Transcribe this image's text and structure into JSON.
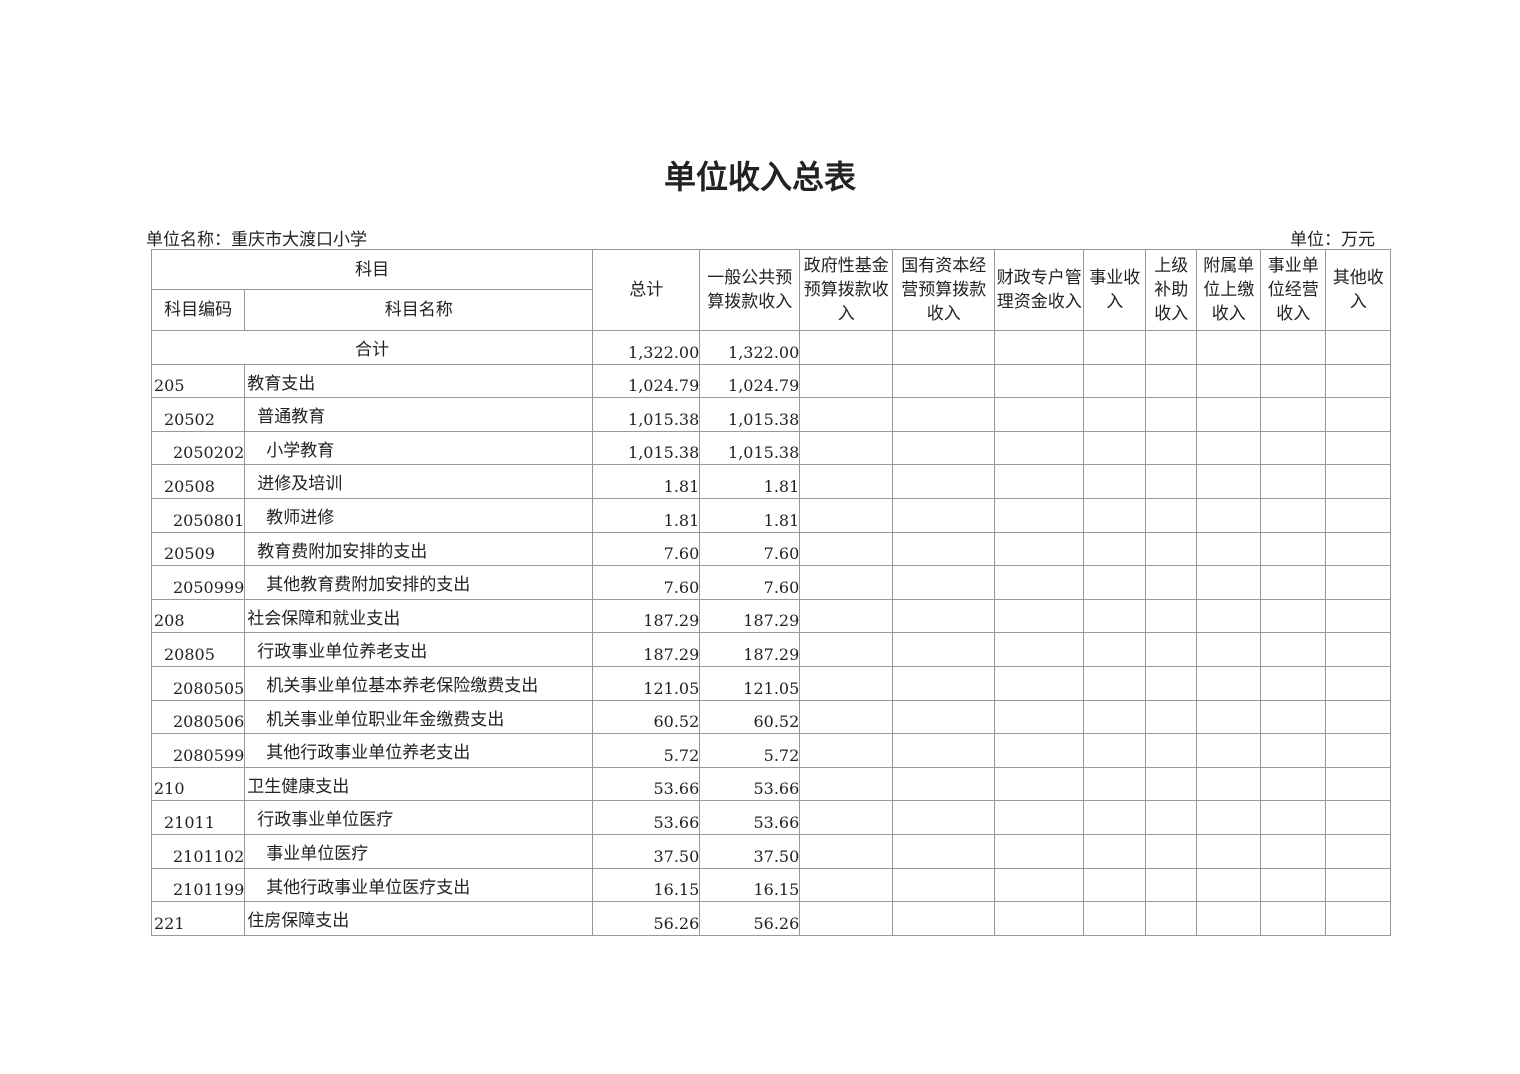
{
  "title": "单位收入总表",
  "unit_name": "单位名称：重庆市大渡口小学",
  "unit": "单位：万元",
  "headers": {
    "subject": "科目",
    "code": "科目编码",
    "name": "科目名称",
    "total": "总计",
    "cols": [
      "一般公共预算拨款收入",
      "政府性基金预算拨款收入",
      "国有资本经营预算拨款收入",
      "财政专户管理资金收入",
      "事业收入",
      "上级补助收入",
      "附属单位上缴收入",
      "事业单位经营收入",
      "其他收入"
    ]
  },
  "total_row": {
    "label": "合计",
    "total": "1,322.00",
    "general": "1,322.00"
  },
  "rows": [
    {
      "code": "205",
      "name": "教育支出",
      "level": 1,
      "total": "1,024.79",
      "general": "1,024.79"
    },
    {
      "code": "20502",
      "name": "普通教育",
      "level": 2,
      "total": "1,015.38",
      "general": "1,015.38"
    },
    {
      "code": "2050202",
      "name": "小学教育",
      "level": 3,
      "total": "1,015.38",
      "general": "1,015.38"
    },
    {
      "code": "20508",
      "name": "进修及培训",
      "level": 2,
      "total": "1.81",
      "general": "1.81"
    },
    {
      "code": "2050801",
      "name": "教师进修",
      "level": 3,
      "total": "1.81",
      "general": "1.81"
    },
    {
      "code": "20509",
      "name": "教育费附加安排的支出",
      "level": 2,
      "total": "7.60",
      "general": "7.60"
    },
    {
      "code": "2050999",
      "name": "其他教育费附加安排的支出",
      "level": 3,
      "total": "7.60",
      "general": "7.60"
    },
    {
      "code": "208",
      "name": "社会保障和就业支出",
      "level": 1,
      "total": "187.29",
      "general": "187.29"
    },
    {
      "code": "20805",
      "name": "行政事业单位养老支出",
      "level": 2,
      "total": "187.29",
      "general": "187.29"
    },
    {
      "code": "2080505",
      "name": "机关事业单位基本养老保险缴费支出",
      "level": 3,
      "total": "121.05",
      "general": "121.05"
    },
    {
      "code": "2080506",
      "name": "机关事业单位职业年金缴费支出",
      "level": 3,
      "total": "60.52",
      "general": "60.52"
    },
    {
      "code": "2080599",
      "name": "其他行政事业单位养老支出",
      "level": 3,
      "total": "5.72",
      "general": "5.72"
    },
    {
      "code": "210",
      "name": "卫生健康支出",
      "level": 1,
      "total": "53.66",
      "general": "53.66"
    },
    {
      "code": "21011",
      "name": "行政事业单位医疗",
      "level": 2,
      "total": "53.66",
      "general": "53.66"
    },
    {
      "code": "2101102",
      "name": "事业单位医疗",
      "level": 3,
      "total": "37.50",
      "general": "37.50"
    },
    {
      "code": "2101199",
      "name": "其他行政事业单位医疗支出",
      "level": 3,
      "total": "16.15",
      "general": "16.15"
    },
    {
      "code": "221",
      "name": "住房保障支出",
      "level": 1,
      "total": "56.26",
      "general": "56.26"
    }
  ]
}
